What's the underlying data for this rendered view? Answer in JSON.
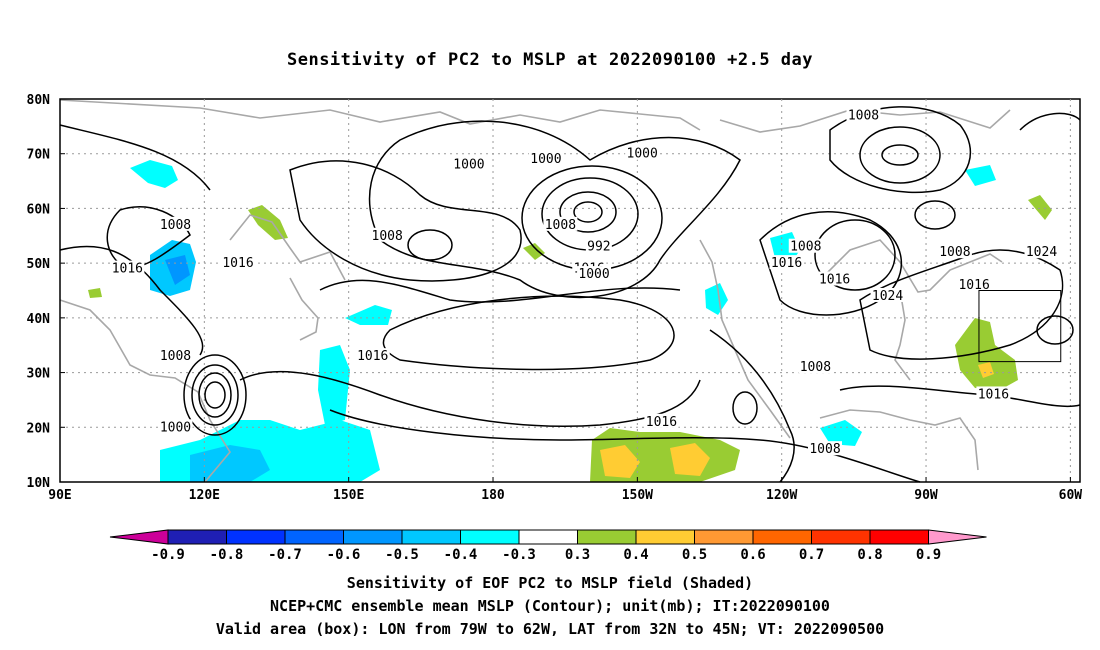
{
  "title": "Sensitivity of PC2 to MSLP at 2022090100 +2.5 day",
  "lat_labels": [
    "80N",
    "70N",
    "60N",
    "50N",
    "40N",
    "30N",
    "20N",
    "10N"
  ],
  "lon_labels": [
    "90E",
    "120E",
    "150E",
    "180",
    "150W",
    "120W",
    "90W",
    "60W"
  ],
  "contour_labels": [
    {
      "text": "1008",
      "lon": 257,
      "lat": 77
    },
    {
      "text": "1000",
      "lon": 175,
      "lat": 68
    },
    {
      "text": "1000",
      "lon": 191,
      "lat": 69
    },
    {
      "text": "1000",
      "lon": 211,
      "lat": 70
    },
    {
      "text": "1008",
      "lon": 114,
      "lat": 57
    },
    {
      "text": "1008",
      "lon": 158,
      "lat": 55
    },
    {
      "text": "1008",
      "lon": 194,
      "lat": 57
    },
    {
      "text": "992",
      "lon": 202,
      "lat": 53
    },
    {
      "text": "1008",
      "lon": 245,
      "lat": 53
    },
    {
      "text": "1008",
      "lon": 276,
      "lat": 52
    },
    {
      "text": "1024",
      "lon": 294,
      "lat": 52
    },
    {
      "text": "1016",
      "lon": 104,
      "lat": 49
    },
    {
      "text": "1016",
      "lon": 127,
      "lat": 50
    },
    {
      "text": "1016",
      "lon": 200,
      "lat": 49
    },
    {
      "text": "1000",
      "lon": 201,
      "lat": 48
    },
    {
      "text": "1016",
      "lon": 241,
      "lat": 50
    },
    {
      "text": "1016",
      "lon": 251,
      "lat": 47
    },
    {
      "text": "1024",
      "lon": 262,
      "lat": 44
    },
    {
      "text": "1016",
      "lon": 280,
      "lat": 46
    },
    {
      "text": "1008",
      "lon": 114,
      "lat": 33
    },
    {
      "text": "1016",
      "lon": 155,
      "lat": 33
    },
    {
      "text": "1008",
      "lon": 247,
      "lat": 31
    },
    {
      "text": "1016",
      "lon": 284,
      "lat": 26
    },
    {
      "text": "1000",
      "lon": 114,
      "lat": 20
    },
    {
      "text": "1016",
      "lon": 215,
      "lat": 21
    },
    {
      "text": "1008",
      "lon": 249,
      "lat": 16
    }
  ],
  "colorbar": {
    "labels": [
      "-0.9",
      "-0.8",
      "-0.7",
      "-0.6",
      "-0.5",
      "-0.4",
      "-0.3",
      "0.3",
      "0.4",
      "0.5",
      "0.6",
      "0.7",
      "0.8",
      "0.9"
    ],
    "colors": [
      "#cc0099",
      "#1f1fb4",
      "#0032ff",
      "#0064ff",
      "#0096ff",
      "#00c8ff",
      "#00ffff",
      "#ffffff",
      "#99cc33",
      "#ffcc33",
      "#ff9933",
      "#ff6600",
      "#ff3300",
      "#ff0000",
      "#ff99cc"
    ]
  },
  "valid_box": {
    "lon_from": -79,
    "lon_to": -62,
    "lat_from": 32,
    "lat_to": 45
  },
  "captions": {
    "line1": "Sensitivity of EOF PC2 to MSLP field (Shaded)",
    "line2": "NCEP+CMC ensemble mean MSLP (Contour); unit(mb); IT:2022090100",
    "line3": "Valid area (box): LON from 79W to 62W, LAT from 32N to 45N; VT: 2022090500"
  }
}
